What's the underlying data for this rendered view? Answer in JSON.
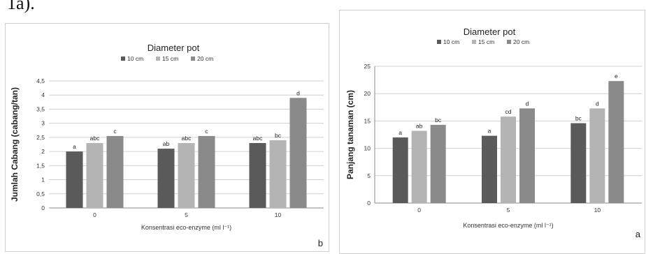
{
  "caption_fragment": "1a).",
  "colors": {
    "10 cm": "#5a5a5a",
    "15 cm": "#b4b4b4",
    "20 cm": "#8a8a8a",
    "grid": "#d0d0d0",
    "axis": "#888888"
  },
  "chart_data": [
    {
      "panel_label": "b",
      "type": "bar",
      "title": "Diameter pot",
      "xlabel": "Konsentrasi eco-enzyme (ml l⁻¹)",
      "ylabel": "Jumlah Cabang (cabang/tan)",
      "ylim": [
        0,
        4.5
      ],
      "yticks": [
        "0",
        "0,5",
        "1",
        "1,5",
        "2",
        "2,5",
        "3",
        "3,5",
        "4",
        "4,5"
      ],
      "grid": true,
      "legend": "top",
      "categories": [
        "0",
        "5",
        "10"
      ],
      "series": [
        {
          "name": "10 cm",
          "values": [
            2.0,
            2.1,
            2.3
          ],
          "labels": [
            "a",
            "ab",
            "abc"
          ]
        },
        {
          "name": "15 cm",
          "values": [
            2.3,
            2.3,
            2.4
          ],
          "labels": [
            "abc",
            "abc",
            "bc"
          ]
        },
        {
          "name": "20 cm",
          "values": [
            2.55,
            2.55,
            3.9
          ],
          "labels": [
            "c",
            "c",
            "d"
          ]
        }
      ]
    },
    {
      "panel_label": "a",
      "type": "bar",
      "title": "Diameter pot",
      "xlabel": "Konsentrasi eco-enzyme (ml l⁻¹)",
      "ylabel": "Panjang tanaman (cm)",
      "ylim": [
        0,
        25
      ],
      "yticks": [
        "0",
        "5",
        "10",
        "15",
        "20",
        "25"
      ],
      "grid": true,
      "legend": "top",
      "categories": [
        "0",
        "5",
        "10"
      ],
      "series": [
        {
          "name": "10 cm",
          "values": [
            12.0,
            12.3,
            14.6
          ],
          "labels": [
            "a",
            "a",
            "bc"
          ]
        },
        {
          "name": "15 cm",
          "values": [
            13.2,
            15.8,
            17.3
          ],
          "labels": [
            "ab",
            "cd",
            "d"
          ]
        },
        {
          "name": "20 cm",
          "values": [
            14.3,
            17.3,
            22.3
          ],
          "labels": [
            "bc",
            "d",
            "e"
          ]
        }
      ]
    }
  ]
}
